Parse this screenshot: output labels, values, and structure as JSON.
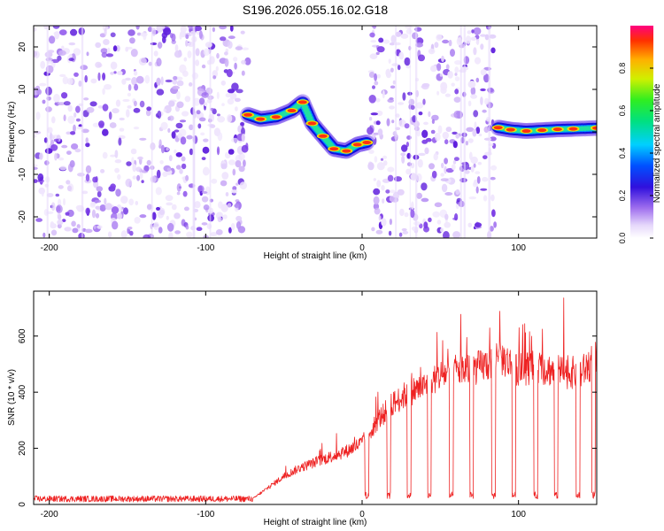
{
  "title": "S196.2026.055.16.02.G18",
  "chart_data": [
    {
      "type": "heatmap",
      "xlabel": "Height of straight line (km)",
      "ylabel": "Frequency (Hz)",
      "xlim": [
        -210,
        150
      ],
      "ylim": [
        -25,
        25
      ],
      "xticks": [
        -200,
        -100,
        0,
        100
      ],
      "yticks": [
        -20,
        -10,
        0,
        10,
        20
      ],
      "noise_regions_km": [
        [
          -210,
          -73
        ],
        [
          5,
          85
        ]
      ],
      "empty_regions_km": [
        [
          -73,
          -70
        ],
        [
          85,
          87
        ]
      ],
      "signal_track": {
        "segment_1": {
          "x": [
            -73,
            -65,
            -55,
            -45,
            -38,
            -32,
            -25,
            -18,
            -10,
            -3,
            3
          ],
          "y": [
            4,
            3,
            3.5,
            5,
            7,
            2,
            -1,
            -4,
            -4.5,
            -3,
            -2.5
          ]
        },
        "segment_2": {
          "x": [
            87,
            95,
            105,
            115,
            125,
            135,
            150
          ],
          "y": [
            1,
            0.5,
            0.2,
            0.4,
            0.6,
            0.7,
            0.9
          ]
        }
      },
      "colorbar": {
        "label": "Normalized spectral amplitude",
        "range": [
          0,
          1
        ],
        "ticks": [
          "0.0",
          "0.2",
          "0.4",
          "0.6",
          "0.8"
        ]
      }
    },
    {
      "type": "line",
      "xlabel": "Height of straight line (km)",
      "ylabel": "SNR (10 * v/v)",
      "xlim": [
        -210,
        150
      ],
      "ylim": [
        0,
        760
      ],
      "xticks": [
        -200,
        -100,
        0,
        100
      ],
      "yticks": [
        0,
        200,
        400,
        600
      ],
      "series": [
        {
          "name": "SNR",
          "color": "#ee2222",
          "trend_x": [
            -210,
            -70,
            -60,
            -50,
            -40,
            -30,
            -20,
            -10,
            0,
            10,
            20,
            30,
            40,
            50,
            60,
            70,
            80,
            90,
            100,
            110,
            120,
            130,
            140,
            150
          ],
          "trend_y": [
            20,
            20,
            60,
            100,
            130,
            150,
            170,
            190,
            220,
            300,
            360,
            400,
            420,
            460,
            480,
            480,
            500,
            520,
            480,
            490,
            480,
            470,
            470,
            520
          ],
          "dropout_x": [
            3,
            17,
            30,
            43,
            57,
            70,
            84,
            97,
            111,
            124,
            138,
            148
          ],
          "spike_peak": 760
        }
      ]
    }
  ]
}
